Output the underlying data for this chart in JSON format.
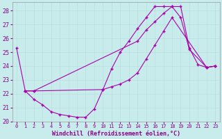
{
  "xlabel": "Windchill (Refroidissement éolien,°C)",
  "bg_color": "#c8ecec",
  "line_color": "#aa00aa",
  "grid_color": "#b8dede",
  "xlim": [
    -0.5,
    23.5
  ],
  "ylim": [
    20,
    28.6
  ],
  "yticks": [
    20,
    21,
    22,
    23,
    24,
    25,
    26,
    27,
    28
  ],
  "xticks": [
    0,
    1,
    2,
    3,
    4,
    5,
    6,
    7,
    8,
    9,
    10,
    11,
    12,
    13,
    14,
    15,
    16,
    17,
    18,
    19,
    20,
    21,
    22,
    23
  ],
  "series": [
    {
      "x": [
        0,
        1,
        2,
        3,
        4,
        5,
        6,
        7,
        8,
        9,
        10,
        11,
        12,
        13,
        14,
        15,
        16,
        17,
        18,
        19,
        20,
        21,
        22,
        23
      ],
      "y": [
        25.3,
        22.2,
        21.6,
        21.2,
        20.7,
        20.5,
        20.4,
        20.3,
        20.3,
        20.9,
        22.3,
        23.8,
        25.0,
        25.8,
        26.7,
        27.5,
        28.3,
        28.3,
        28.3,
        28.3,
        25.3,
        24.1,
        23.9,
        24.0
      ]
    },
    {
      "x": [
        1,
        2,
        10,
        11,
        12,
        13,
        14,
        15,
        16,
        17,
        18,
        22,
        23
      ],
      "y": [
        22.2,
        22.2,
        22.3,
        22.5,
        22.7,
        23.0,
        23.5,
        24.5,
        25.5,
        26.5,
        27.5,
        23.9,
        24.0
      ]
    },
    {
      "x": [
        1,
        2,
        14,
        15,
        16,
        17,
        18,
        19,
        20,
        22,
        23
      ],
      "y": [
        22.2,
        22.2,
        25.8,
        26.6,
        27.2,
        27.8,
        28.3,
        27.5,
        25.2,
        23.9,
        24.0
      ]
    }
  ]
}
